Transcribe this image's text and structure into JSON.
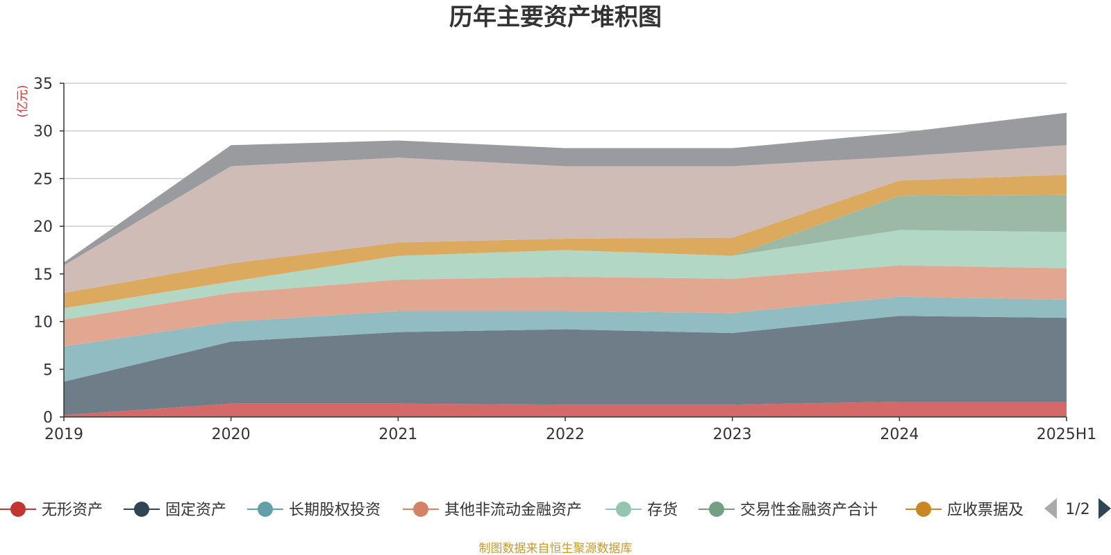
{
  "chart_data": {
    "type": "area",
    "stacked": true,
    "title": "历年主要资产堆积图",
    "y_unit_label": "(亿元)",
    "categories": [
      "2019",
      "2020",
      "2021",
      "2022",
      "2023",
      "2024",
      "2025H1"
    ],
    "ylim": [
      0,
      35
    ],
    "y_ticks": [
      "0",
      "5",
      "10",
      "15",
      "20",
      "25",
      "30",
      "35"
    ],
    "grid": true,
    "legend_position": "bottom",
    "legend_page": "1/2",
    "source_note": "制图数据来自恒生聚源数据库",
    "series": [
      {
        "name": "无形资产",
        "color": "#c23531",
        "fill": "#d46a68",
        "values": [
          0.2,
          1.4,
          1.4,
          1.3,
          1.3,
          1.6,
          1.6
        ]
      },
      {
        "name": "固定资产",
        "color": "#2f4554",
        "fill": "#6e7d88",
        "values": [
          3.5,
          6.5,
          7.5,
          7.9,
          7.5,
          9.0,
          8.8
        ]
      },
      {
        "name": "长期股权投资",
        "color": "#61a0a8",
        "fill": "#90bcc2",
        "values": [
          3.7,
          2.1,
          2.2,
          1.9,
          2.1,
          2.0,
          1.9
        ]
      },
      {
        "name": "其他非流动金融资产",
        "color": "#d48265",
        "fill": "#e2a790",
        "values": [
          2.8,
          3.0,
          3.3,
          3.6,
          3.6,
          3.3,
          3.3
        ]
      },
      {
        "name": "存货",
        "color": "#91c7ae",
        "fill": "#b2d8c5",
        "values": [
          1.2,
          1.2,
          2.5,
          2.8,
          2.4,
          3.7,
          3.8
        ]
      },
      {
        "name": "交易性金融资产合计",
        "color": "#749f83",
        "fill": "#9bb9a5",
        "values": [
          0,
          0,
          0,
          0,
          0,
          3.6,
          3.9
        ]
      },
      {
        "name": "应收票据及",
        "color": "#ca8622",
        "fill": "#dbaa5e",
        "values": [
          1.6,
          1.9,
          1.4,
          1.2,
          1.9,
          1.6,
          2.1
        ]
      },
      {
        "name": "",
        "color": "#bda29a",
        "fill": "#d0bcb6",
        "values": [
          2.9,
          10.2,
          8.9,
          7.6,
          7.5,
          2.5,
          3.1
        ]
      },
      {
        "name": "",
        "color": "#6e7074",
        "fill": "#9a9b9e",
        "values": [
          0.3,
          2.2,
          1.8,
          1.9,
          1.9,
          2.5,
          3.4
        ]
      }
    ]
  }
}
